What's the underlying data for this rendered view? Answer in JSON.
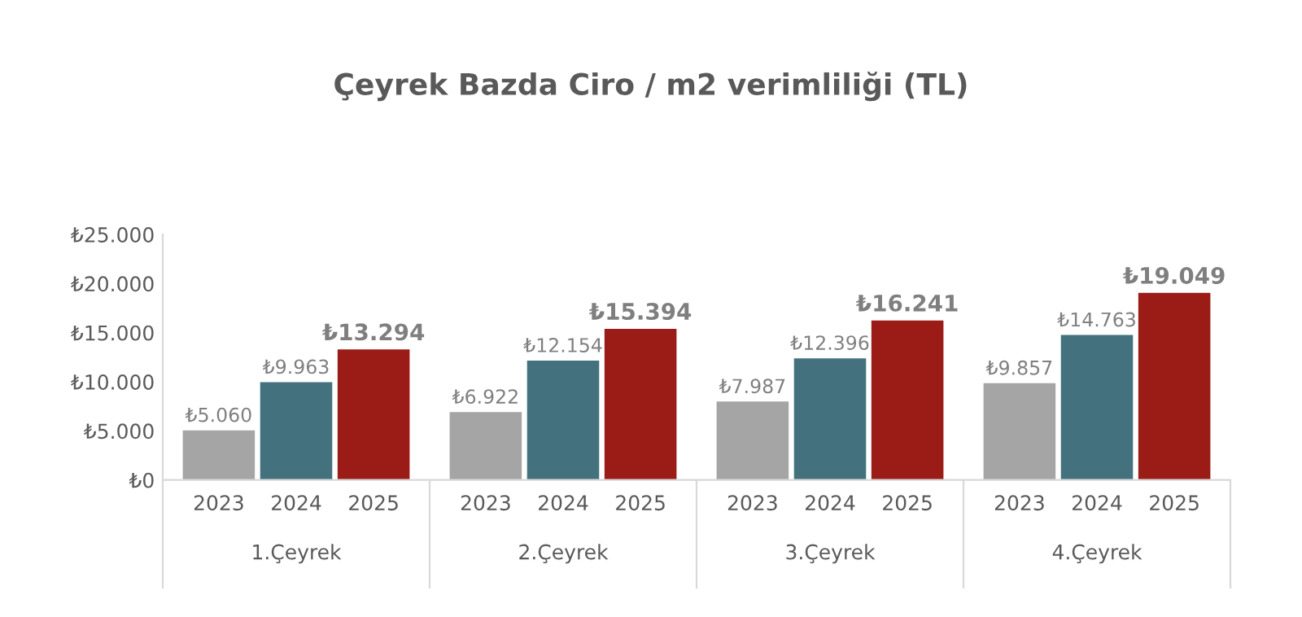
{
  "chart_data": {
    "type": "bar",
    "title": "Çeyrek Bazda Ciro / m2 verimliliği (TL)",
    "categories": [
      "1.Çeyrek",
      "2.Çeyrek",
      "3.Çeyrek",
      "4.Çeyrek"
    ],
    "series": [
      {
        "name": "2023",
        "color": "#a5a5a5",
        "values": [
          5060,
          6922,
          7987,
          9857
        ],
        "value_labels": [
          "₺5.060",
          "₺6.922",
          "₺7.987",
          "₺9.857"
        ]
      },
      {
        "name": "2024",
        "color": "#43727e",
        "values": [
          9963,
          12154,
          12396,
          14763
        ],
        "value_labels": [
          "₺9.963",
          "₺12.154",
          "₺12.396",
          "₺14.763"
        ]
      },
      {
        "name": "2025",
        "color": "#9b1c17",
        "values": [
          13294,
          15394,
          16241,
          19049
        ],
        "value_labels": [
          "₺13.294",
          "₺15.394",
          "₺16.241",
          "₺19.049"
        ]
      }
    ],
    "ylim": [
      0,
      25000
    ],
    "yticks": [
      {
        "value": 0,
        "label": "₺0"
      },
      {
        "value": 5000,
        "label": "₺5.000"
      },
      {
        "value": 10000,
        "label": "₺10.000"
      },
      {
        "value": 15000,
        "label": "₺15.000"
      },
      {
        "value": 20000,
        "label": "₺20.000"
      },
      {
        "value": 25000,
        "label": "₺25.000"
      }
    ],
    "grid": false,
    "legend": false
  }
}
